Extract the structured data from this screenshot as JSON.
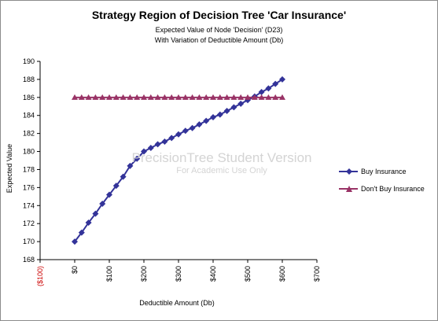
{
  "chart_data": {
    "type": "line",
    "title": "Strategy Region of Decision Tree 'Car Insurance'",
    "subtitle_lines": [
      "Expected Value of Node 'Decision' (D23)",
      "With Variation of Deductible Amount (Db)"
    ],
    "xlabel": "Deductible Amount (Db)",
    "ylabel": "Expected Value",
    "xlim": [
      -100,
      700
    ],
    "ylim": [
      168,
      190
    ],
    "x_ticks": [
      -100,
      0,
      100,
      200,
      300,
      400,
      500,
      600,
      700
    ],
    "x_tick_labels": [
      "($100)",
      "$0",
      "$100",
      "$200",
      "$300",
      "$400",
      "$500",
      "$600",
      "$700"
    ],
    "x_tick_colors": [
      "#cc0000",
      "#000000",
      "#000000",
      "#000000",
      "#000000",
      "#000000",
      "#000000",
      "#000000",
      "#000000"
    ],
    "y_ticks": [
      168,
      170,
      172,
      174,
      176,
      178,
      180,
      182,
      184,
      186,
      188,
      190
    ],
    "y_tick_labels": [
      "168",
      "170",
      "172",
      "174",
      "176",
      "178",
      "180",
      "182",
      "184",
      "186",
      "188",
      "190"
    ],
    "legend_position": "right",
    "grid": false,
    "x": [
      0,
      20,
      40,
      60,
      80,
      100,
      120,
      140,
      160,
      180,
      200,
      220,
      240,
      260,
      280,
      300,
      320,
      340,
      360,
      380,
      400,
      420,
      440,
      460,
      480,
      500,
      520,
      540,
      560,
      580,
      600
    ],
    "series": [
      {
        "name": "Buy Insurance",
        "color": "#333399",
        "marker": "diamond",
        "values": [
          170.0,
          171.0,
          172.1,
          173.1,
          174.2,
          175.2,
          176.2,
          177.2,
          178.4,
          179.2,
          180.0,
          180.4,
          180.8,
          181.1,
          181.5,
          181.9,
          182.3,
          182.6,
          183.0,
          183.4,
          183.8,
          184.1,
          184.5,
          184.9,
          185.3,
          185.7,
          186.1,
          186.6,
          187.0,
          187.5,
          188.0
        ]
      },
      {
        "name": "Don't Buy Insurance",
        "color": "#993366",
        "marker": "triangle",
        "values": [
          186.0,
          186.0,
          186.0,
          186.0,
          186.0,
          186.0,
          186.0,
          186.0,
          186.0,
          186.0,
          186.0,
          186.0,
          186.0,
          186.0,
          186.0,
          186.0,
          186.0,
          186.0,
          186.0,
          186.0,
          186.0,
          186.0,
          186.0,
          186.0,
          186.0,
          186.0,
          186.0,
          186.0,
          186.0,
          186.0,
          186.0
        ]
      }
    ],
    "watermark": {
      "line1": "PrecisionTree Student Version",
      "line2": "For Academic Use Only"
    }
  }
}
